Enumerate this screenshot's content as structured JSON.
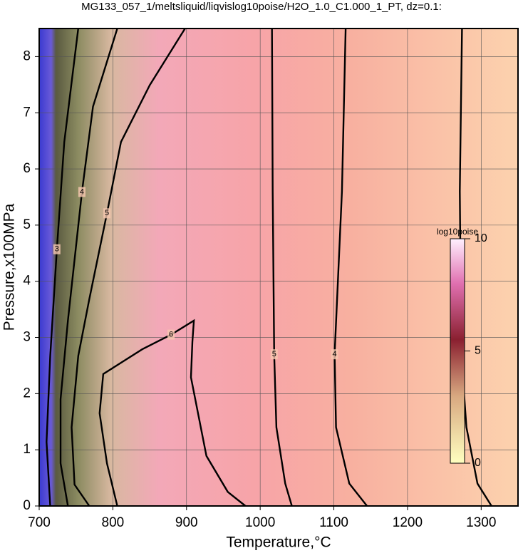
{
  "chart_data": {
    "type": "contour",
    "title": "MG133_057_1/meltsliquid/liqvislog10poise/H2O_1.0_C1.000_1_PT, dz=0.1:",
    "x_label": "Temperature,°C",
    "y_label": "Pressure,x100MPa",
    "xlim": [
      700,
      1350
    ],
    "ylim": [
      0,
      8.5
    ],
    "xticks": [
      700,
      800,
      900,
      1000,
      1100,
      1200,
      1300
    ],
    "yticks": [
      0,
      1,
      2,
      3,
      4,
      5,
      6,
      7,
      8
    ],
    "grid": true,
    "contours": [
      {
        "level": 3,
        "x": [
          1274,
          1271,
          1273,
          1280,
          1295,
          1314
        ],
        "y": [
          8.5,
          5.6,
          2.7,
          1.4,
          0.4,
          0
        ]
      },
      {
        "level": 4,
        "x": [
          1116,
          1111,
          1101,
          1103,
          1121,
          1145
        ],
        "y": [
          8.5,
          5.6,
          2.7,
          1.4,
          0.4,
          0
        ]
      },
      {
        "level": 5,
        "x": [
          1016,
          1017,
          1019,
          1022,
          1034,
          1043
        ],
        "y": [
          8.5,
          5.6,
          2.7,
          1.4,
          0.4,
          0
        ]
      },
      {
        "level": 6,
        "x": [
          806,
          792,
          782,
          787,
          840,
          879,
          910,
          908,
          906,
          927,
          956,
          980
        ],
        "y": [
          0,
          0.76,
          1.65,
          2.35,
          2.79,
          3.05,
          3.3,
          2.92,
          2.29,
          0.89,
          0.25,
          0
        ]
      },
      {
        "level": 5,
        "x": [
          898,
          850,
          811,
          792,
          768,
          753,
          744,
          748,
          768
        ],
        "y": [
          8.5,
          7.49,
          6.48,
          5.21,
          3.68,
          2.67,
          1.4,
          0.38,
          0
        ]
      },
      {
        "level": 4,
        "x": [
          806,
          773,
          758,
          739,
          729,
          729,
          739
        ],
        "y": [
          8.5,
          7.11,
          5.59,
          3.3,
          1.9,
          0.76,
          0
        ]
      },
      {
        "level": 3,
        "x": [
          753,
          734,
          724,
          715,
          710,
          715
        ],
        "y": [
          8.5,
          6.48,
          4.57,
          2.67,
          1.14,
          0
        ]
      }
    ],
    "colorbar": {
      "label": "log10poise",
      "lim": [
        0,
        10
      ],
      "ticks": [
        0,
        5,
        10
      ]
    }
  }
}
